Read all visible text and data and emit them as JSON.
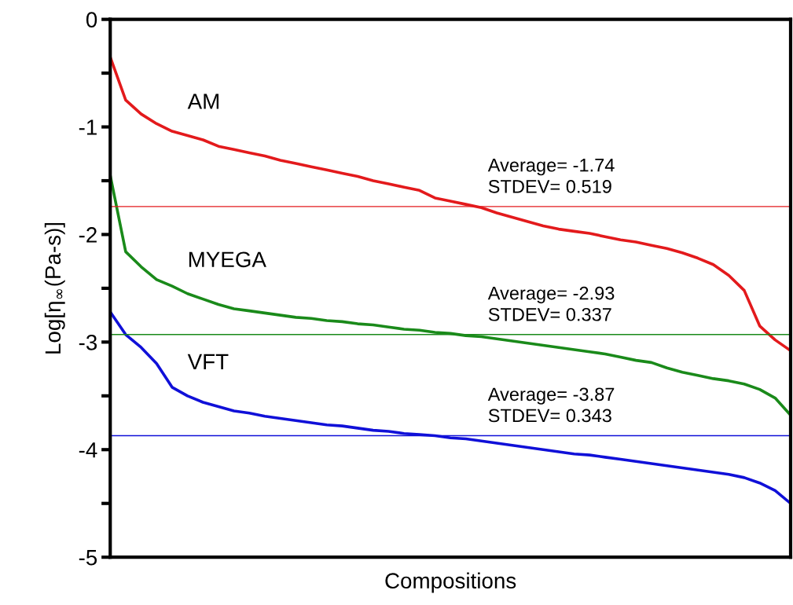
{
  "chart_data": {
    "type": "line",
    "xlabel": "Compositions",
    "ylabel": "Log[η$_{∞}$(Pa-s)]",
    "categories": [
      null,
      null,
      null,
      null,
      null,
      null,
      null,
      null,
      null,
      null,
      null,
      null,
      null,
      null,
      null,
      null,
      null,
      null,
      null,
      null,
      null,
      null,
      null,
      null,
      null,
      null,
      null,
      null,
      null,
      null,
      null,
      null,
      null,
      null,
      null,
      null,
      null,
      null,
      null,
      null,
      null,
      null,
      null,
      null,
      null
    ],
    "series": [
      {
        "name": "AM",
        "color": "#e31a1c",
        "values": [
          -0.35,
          -0.75,
          -0.88,
          -0.97,
          -1.04,
          -1.08,
          -1.12,
          -1.18,
          -1.21,
          -1.24,
          -1.27,
          -1.31,
          -1.34,
          -1.37,
          -1.4,
          -1.43,
          -1.46,
          -1.5,
          -1.53,
          -1.56,
          -1.59,
          -1.66,
          -1.69,
          -1.72,
          -1.75,
          -1.8,
          -1.84,
          -1.88,
          -1.92,
          -1.95,
          -1.97,
          -1.99,
          -2.02,
          -2.05,
          -2.07,
          -2.1,
          -2.13,
          -2.17,
          -2.22,
          -2.28,
          -2.38,
          -2.52,
          -2.85,
          -2.98,
          -3.08
        ]
      },
      {
        "name": "MYEGA",
        "color": "#1a8a1a",
        "values": [
          -1.45,
          -2.16,
          -2.3,
          -2.42,
          -2.48,
          -2.55,
          -2.6,
          -2.65,
          -2.69,
          -2.71,
          -2.73,
          -2.75,
          -2.77,
          -2.78,
          -2.8,
          -2.81,
          -2.83,
          -2.84,
          -2.86,
          -2.88,
          -2.89,
          -2.91,
          -2.92,
          -2.94,
          -2.95,
          -2.97,
          -2.99,
          -3.01,
          -3.03,
          -3.05,
          -3.07,
          -3.09,
          -3.11,
          -3.14,
          -3.17,
          -3.19,
          -3.24,
          -3.28,
          -3.31,
          -3.34,
          -3.36,
          -3.39,
          -3.44,
          -3.52,
          -3.68
        ]
      },
      {
        "name": "VFT",
        "color": "#1010d8",
        "values": [
          -2.72,
          -2.93,
          -3.05,
          -3.2,
          -3.42,
          -3.5,
          -3.56,
          -3.6,
          -3.64,
          -3.66,
          -3.69,
          -3.71,
          -3.73,
          -3.75,
          -3.77,
          -3.78,
          -3.8,
          -3.82,
          -3.83,
          -3.85,
          -3.86,
          -3.87,
          -3.89,
          -3.9,
          -3.92,
          -3.94,
          -3.96,
          -3.98,
          -4.0,
          -4.02,
          -4.04,
          -4.05,
          -4.07,
          -4.09,
          -4.11,
          -4.13,
          -4.15,
          -4.17,
          -4.19,
          -4.21,
          -4.23,
          -4.26,
          -4.31,
          -4.38,
          -4.5
        ]
      }
    ],
    "ylim": [
      -5,
      0
    ],
    "yticks": [
      -5,
      {
        "value": -4.5,
        "label": null
      },
      -4,
      {
        "value": -3.5,
        "label": null
      },
      -3,
      {
        "value": -2.5,
        "label": null
      },
      -2,
      {
        "value": -1.5,
        "label": null
      },
      -1,
      {
        "value": -0.5,
        "label": null
      },
      0
    ],
    "ref_lines": [
      {
        "axis": "y",
        "value": -1.74,
        "label": "Average= -1.74\nSTDEV= 0.519",
        "color": "#e31a1c"
      },
      {
        "axis": "y",
        "value": -2.93,
        "label": "Average= -2.93\nSTDEV= 0.337",
        "color": "#1a8a1a"
      },
      {
        "axis": "y",
        "value": -3.87,
        "label": "Average= -3.87\nSTDEV= 0.343",
        "color": "#1010d8"
      }
    ],
    "grid": false,
    "legend": false,
    "marker": "none",
    "line_style": "solid"
  }
}
